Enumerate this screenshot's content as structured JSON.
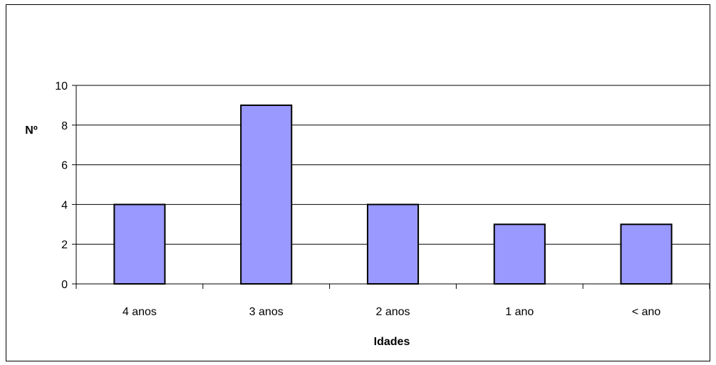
{
  "chart_data": {
    "type": "bar",
    "categories": [
      "4 anos",
      "3 anos",
      "2 anos",
      "1 ano",
      "< ano"
    ],
    "values": [
      4,
      9,
      4,
      3,
      3
    ],
    "xlabel": "Idades",
    "ylabel": "Nº",
    "ylim": [
      0,
      10
    ],
    "yticks": [
      0,
      2,
      4,
      6,
      8,
      10
    ],
    "grid": true,
    "legend": "none",
    "colors": {
      "bar_fill": "#9999ff",
      "bar_stroke": "#000000",
      "grid": "#000000",
      "axis": "#000000"
    }
  }
}
